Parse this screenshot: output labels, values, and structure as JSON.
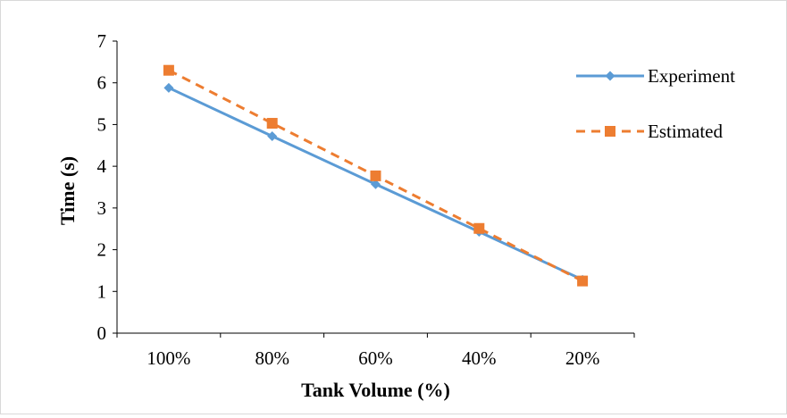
{
  "chart_data": {
    "type": "line",
    "title": "",
    "xlabel": "Tank Volume (%)",
    "ylabel": "Time (s)",
    "categories": [
      "100%",
      "80%",
      "60%",
      "40%",
      "20%"
    ],
    "ylim": [
      0,
      7
    ],
    "yticks": [
      "0",
      "1",
      "2",
      "3",
      "4",
      "5",
      "6",
      "7"
    ],
    "grid": false,
    "legend_position": "right",
    "series": [
      {
        "name": "Experiment",
        "values": [
          5.88,
          4.72,
          3.57,
          2.43,
          1.28
        ],
        "color": "#5b9bd5",
        "line_style": "solid",
        "marker": "diamond"
      },
      {
        "name": "Estimated",
        "values": [
          6.3,
          5.03,
          3.77,
          2.51,
          1.25
        ],
        "color": "#ed7d31",
        "line_style": "dashed",
        "marker": "square"
      }
    ]
  }
}
